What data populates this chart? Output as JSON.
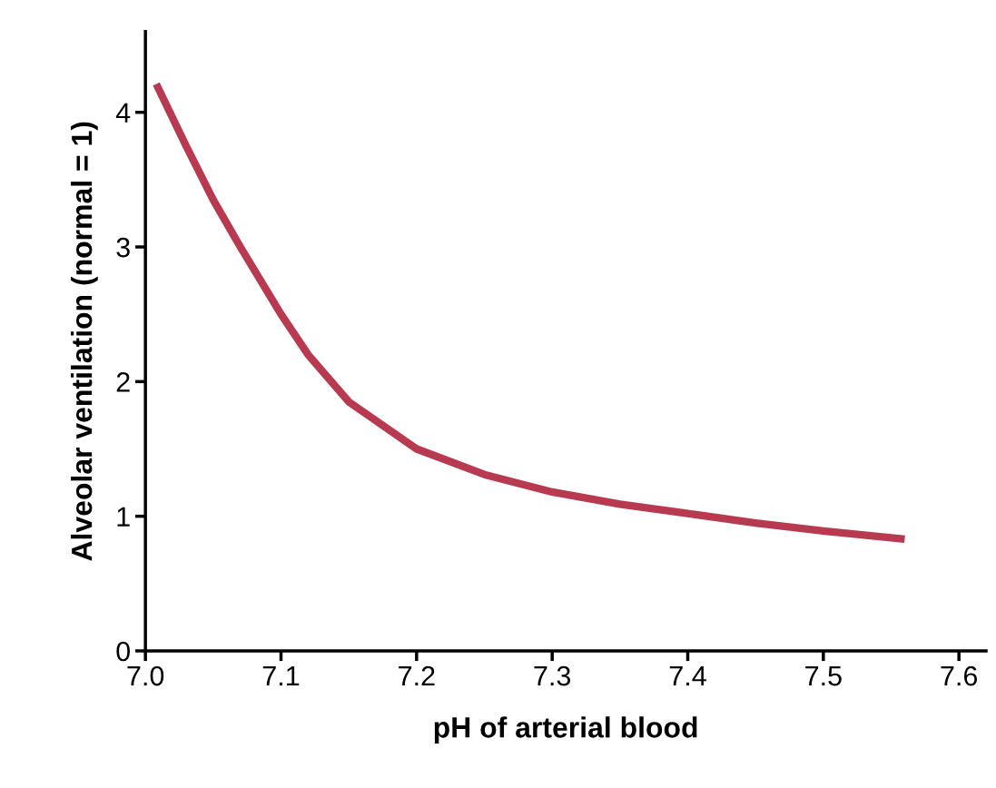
{
  "chart_data": {
    "type": "line",
    "xlabel": "pH of arterial blood",
    "ylabel": "Alveolar ventilation (normal = 1)",
    "series": [
      {
        "color": "#b83a50",
        "x": [
          7.008,
          7.03,
          7.05,
          7.07,
          7.1,
          7.12,
          7.15,
          7.2,
          7.25,
          7.3,
          7.35,
          7.4,
          7.45,
          7.5,
          7.56
        ],
        "values": [
          4.21,
          3.75,
          3.35,
          3.0,
          2.5,
          2.2,
          1.85,
          1.5,
          1.31,
          1.18,
          1.09,
          1.02,
          0.95,
          0.89,
          0.83
        ]
      }
    ],
    "xlim": [
      7.0,
      7.62
    ],
    "ylim": [
      0,
      4.6
    ],
    "xticks": [
      {
        "value": 7.0,
        "label": "7.0"
      },
      7.1,
      7.2,
      7.3,
      7.4,
      7.5,
      7.6
    ],
    "yticks": [
      0,
      1,
      2,
      3,
      4
    ],
    "grid": false,
    "marker": "none",
    "line_style": "solid"
  }
}
